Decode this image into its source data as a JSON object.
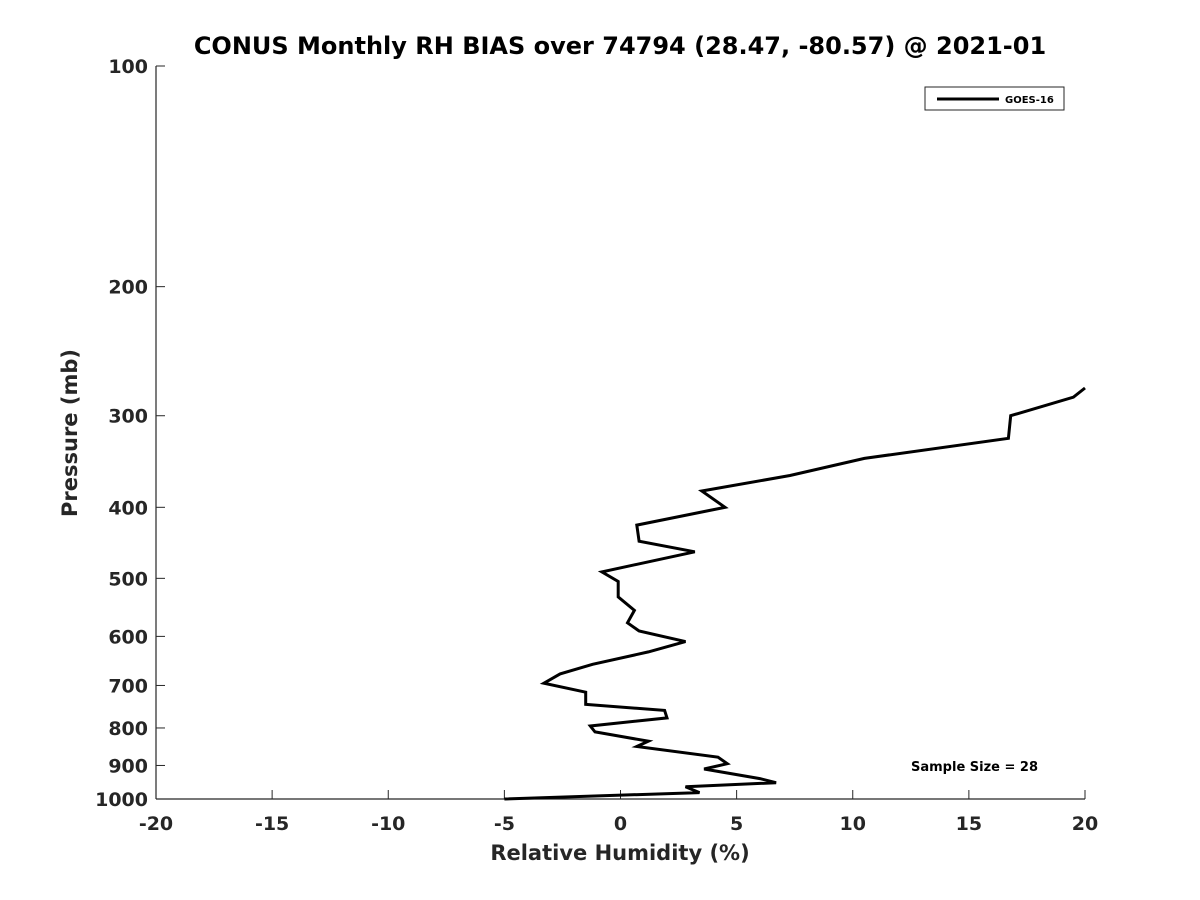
{
  "chart_data": {
    "type": "line",
    "title": "CONUS Monthly RH BIAS over 74794 (28.47, -80.57) @ 2021-01",
    "xlabel": "Relative Humidity (%)",
    "ylabel": "Pressure (mb)",
    "xlim": [
      -20,
      20
    ],
    "ylim": [
      1000,
      100
    ],
    "yscale": "log",
    "xticks": [
      -20,
      -15,
      -10,
      -5,
      0,
      5,
      10,
      15,
      20
    ],
    "xtick_labels": [
      "-20",
      "-15",
      "-10",
      "-5",
      "0",
      "5",
      "10",
      "15",
      "20"
    ],
    "yticks": [
      100,
      200,
      300,
      400,
      500,
      600,
      700,
      800,
      900,
      1000
    ],
    "ytick_labels": [
      "100",
      "200",
      "300",
      "400",
      "500",
      "600",
      "700",
      "800",
      "900",
      "1000"
    ],
    "grid": false,
    "legend_position": "top-right",
    "annotation": "Sample Size = 28",
    "series": [
      {
        "name": "GOES-16",
        "color": "#000000",
        "x": [
          20.0,
          19.5,
          16.8,
          16.7,
          10.5,
          7.3,
          3.5,
          4.5,
          0.7,
          0.8,
          3.2,
          -0.8,
          -0.1,
          -0.1,
          0.6,
          0.3,
          0.8,
          2.8,
          1.2,
          -1.2,
          -2.6,
          -3.3,
          -1.5,
          -1.5,
          1.9,
          2.0,
          -1.3,
          -1.1,
          1.2,
          0.7,
          4.2,
          4.6,
          3.6,
          6.0,
          6.7,
          2.8,
          3.4,
          -5.0
        ],
        "y": [
          275,
          283,
          300,
          322,
          343,
          362,
          380,
          400,
          423,
          445,
          460,
          490,
          505,
          530,
          553,
          575,
          590,
          610,
          630,
          655,
          675,
          695,
          715,
          743,
          757,
          775,
          795,
          810,
          834,
          848,
          877,
          895,
          910,
          938,
          950,
          962,
          980,
          1000
        ]
      }
    ]
  }
}
